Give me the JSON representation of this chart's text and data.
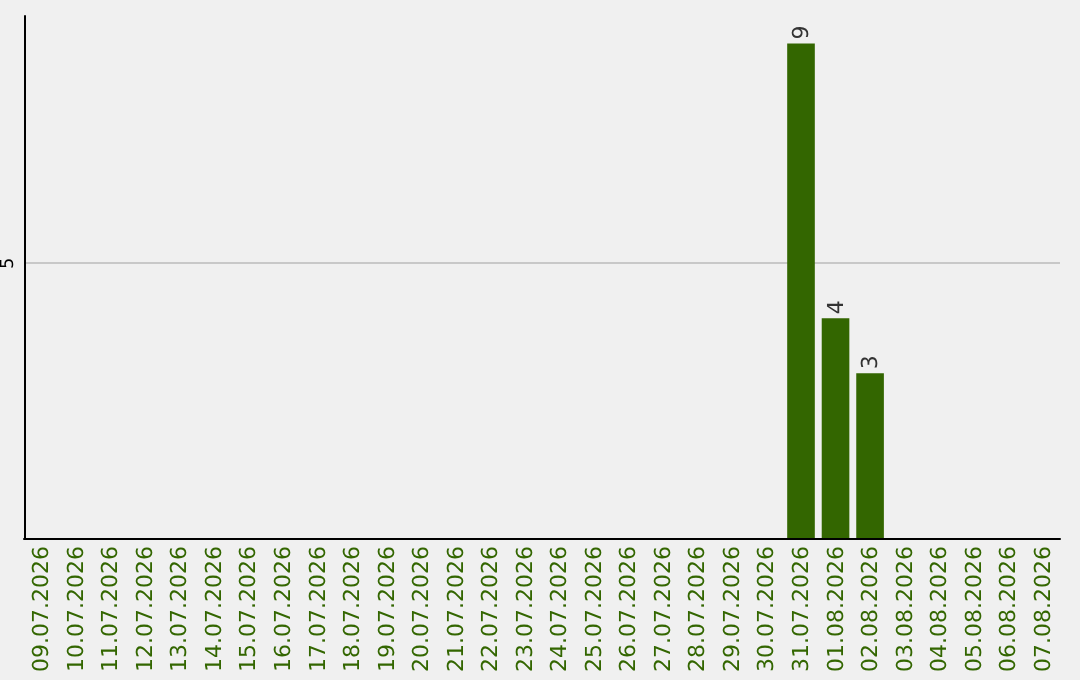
{
  "chart_data": {
    "type": "bar",
    "categories": [
      "09.07.2026",
      "10.07.2026",
      "11.07.2026",
      "12.07.2026",
      "13.07.2026",
      "14.07.2026",
      "15.07.2026",
      "16.07.2026",
      "17.07.2026",
      "18.07.2026",
      "19.07.2026",
      "20.07.2026",
      "21.07.2026",
      "22.07.2026",
      "23.07.2026",
      "24.07.2026",
      "25.07.2026",
      "26.07.2026",
      "27.07.2026",
      "28.07.2026",
      "29.07.2026",
      "30.07.2026",
      "31.07.2026",
      "01.08.2026",
      "02.08.2026",
      "03.08.2026",
      "04.08.2026",
      "05.08.2026",
      "06.08.2026",
      "07.08.2026"
    ],
    "values": [
      null,
      null,
      null,
      null,
      null,
      null,
      null,
      null,
      null,
      null,
      null,
      null,
      null,
      null,
      null,
      null,
      null,
      null,
      null,
      null,
      null,
      null,
      9,
      4,
      3,
      null,
      null,
      null,
      null,
      null
    ],
    "color": "#336600",
    "ylim": [
      0,
      9.5
    ],
    "yticks": [
      5
    ],
    "grid": "y",
    "data_labels": true
  }
}
